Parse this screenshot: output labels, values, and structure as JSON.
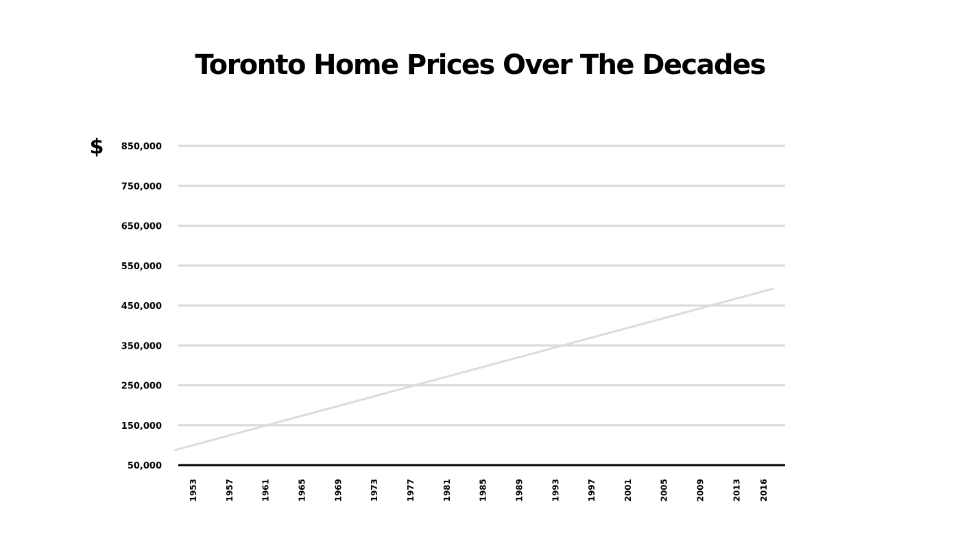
{
  "chart_data": {
    "type": "line",
    "title": "Toronto Home Prices Over The Decades",
    "ylabel": "$",
    "xlabel": "",
    "x_ticks": [
      "1953",
      "1957",
      "1961",
      "1965",
      "1969",
      "1973",
      "1977",
      "1981",
      "1985",
      "1989",
      "1993",
      "1997",
      "2001",
      "2005",
      "2009",
      "2013",
      "2016"
    ],
    "y_ticks": [
      "50,000",
      "150,000",
      "250,000",
      "350,000",
      "450,000",
      "550,000",
      "650,000",
      "750,000",
      "850,000"
    ],
    "ylim": [
      50000,
      850000
    ],
    "grid": true,
    "series": [
      {
        "x": [
          1951,
          2017
        ],
        "y": [
          88000,
          492000
        ]
      }
    ],
    "colors": {
      "grid": "#d9d9d9",
      "axis": "#000000",
      "line": "#dcdcdc",
      "text": "#000000"
    }
  }
}
